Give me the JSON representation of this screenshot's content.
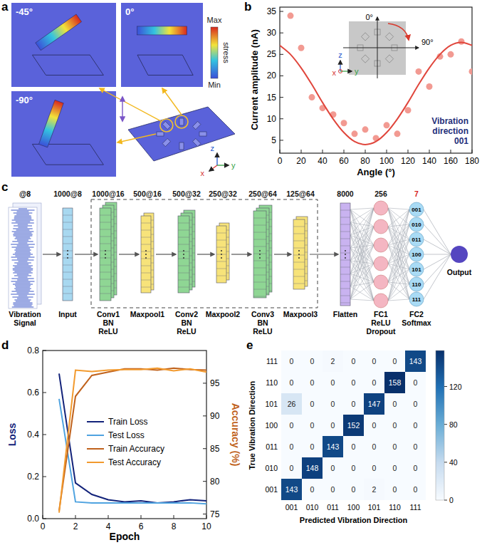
{
  "panel_labels": [
    "a",
    "b",
    "c",
    "d",
    "e"
  ],
  "diagram_a": {
    "angle_labels": [
      "-45°",
      "0°",
      "-90°"
    ],
    "colorbar": {
      "max_label": "Max",
      "title": "stress",
      "min_label": "Min"
    },
    "axes": [
      "x",
      "y",
      "z"
    ]
  },
  "diagram_c": {
    "signal": {
      "size": "@8",
      "label": [
        "Vibration",
        "Signal"
      ]
    },
    "layers": [
      {
        "size": "1000@8",
        "label": [
          "Input"
        ]
      },
      {
        "size": "1000@16",
        "label": [
          "Conv1",
          "BN",
          "ReLU"
        ]
      },
      {
        "size": "500@16",
        "label": [
          "Maxpool1"
        ]
      },
      {
        "size": "500@32",
        "label": [
          "Conv2",
          "BN",
          "ReLU"
        ]
      },
      {
        "size": "250@32",
        "label": [
          "Maxpool2"
        ]
      },
      {
        "size": "250@64",
        "label": [
          "Conv3",
          "BN",
          "ReLU"
        ]
      },
      {
        "size": "125@64",
        "label": [
          "Maxpool3"
        ]
      },
      {
        "size": "8000",
        "label": [
          "Flatten"
        ]
      },
      {
        "size": "256",
        "label": [
          "FC1",
          "ReLU",
          "Dropout"
        ]
      },
      {
        "size": "7",
        "label": [
          "FC2",
          "Softmax"
        ]
      }
    ],
    "classes": [
      "001",
      "010",
      "011",
      "100",
      "101",
      "110",
      "111"
    ],
    "output": "Output"
  },
  "chart_data": [
    {
      "type": "scatter",
      "x_label": "Angle (°)",
      "y_label": "Current amplitude (nA)",
      "xlim": [
        0,
        180
      ],
      "xticks": [
        0,
        20,
        40,
        60,
        80,
        100,
        120,
        140,
        160,
        180
      ],
      "ylim": [
        2,
        36
      ],
      "yticks": [
        5,
        10,
        15,
        20,
        25,
        30,
        35
      ],
      "series": [
        {
          "type": "scatter",
          "marker": "circle",
          "color": "#f29a92",
          "x": [
            10,
            20,
            30,
            40,
            50,
            60,
            70,
            80,
            90,
            100,
            110,
            120,
            130,
            140,
            150,
            160,
            170,
            180
          ],
          "values": [
            34,
            26.5,
            15,
            12.5,
            11,
            9,
            6.5,
            7.5,
            5.5,
            8.5,
            6.5,
            12,
            21,
            17.5,
            24.5,
            25,
            28,
            21
          ]
        },
        {
          "type": "line",
          "line_style": "solid",
          "color": "#e0463c",
          "x": [
            0,
            10,
            20,
            30,
            40,
            50,
            60,
            70,
            80,
            90,
            100,
            110,
            120,
            130,
            140,
            150,
            160,
            170,
            180
          ],
          "values": [
            27.1,
            25.0,
            21.85,
            18.0,
            13.8,
            9.95,
            6.8,
            4.7,
            4.0,
            4.7,
            6.8,
            9.95,
            13.8,
            18.0,
            21.85,
            25.0,
            27.1,
            27.8,
            27.1
          ]
        }
      ],
      "annotation": [
        "Vibration",
        "direction",
        "001"
      ],
      "inset": {
        "angle_labels": [
          "0°",
          "90°"
        ],
        "axes": [
          "z",
          "y",
          "x"
        ]
      }
    },
    {
      "type": "line",
      "x_label": "Epoch",
      "y_label": "Loss",
      "y2_label": "Accuracy (%)",
      "xlim": [
        0,
        10
      ],
      "xticks": [
        0,
        2,
        4,
        6,
        8,
        10
      ],
      "ylim": [
        0,
        0.8
      ],
      "yticks": [
        {
          "value": 0,
          "label": "0.0"
        },
        0.2,
        0.4,
        0.6,
        0.8
      ],
      "y2lim": [
        74.3,
        100
      ],
      "y2ticks": [
        75,
        80,
        85,
        90,
        95
      ],
      "legend": "center",
      "x": [
        1,
        2,
        3,
        4,
        5,
        6,
        7,
        8,
        9,
        10
      ],
      "series": [
        {
          "name": "Train Loss",
          "color": "#13237a",
          "values": [
            0.69,
            0.17,
            0.115,
            0.09,
            0.08,
            0.085,
            0.075,
            0.08,
            0.09,
            0.085
          ]
        },
        {
          "name": "Test Loss",
          "color": "#4fa3e0",
          "values": [
            0.57,
            0.08,
            0.075,
            0.075,
            0.075,
            0.075,
            0.075,
            0.075,
            0.075,
            0.07
          ]
        },
        {
          "name": "Train Accuracy",
          "color": "#c0621c",
          "axis": "y2",
          "values": [
            75.5,
            93,
            96.2,
            96.7,
            97.2,
            97.2,
            97.0,
            97.3,
            97.1,
            97.0
          ]
        },
        {
          "name": "Test Accuracy",
          "color": "#f29a2e",
          "axis": "y2",
          "values": [
            75.2,
            97.0,
            96.8,
            97.0,
            97.1,
            97.1,
            97.3,
            96.9,
            97.2,
            96.7
          ]
        }
      ]
    },
    {
      "type": "heatmap",
      "x_label": "Predicted Vibration Direction",
      "y_label": "True Vibration Direction",
      "categories": [
        "001",
        "010",
        "011",
        "100",
        "101",
        "110",
        "111"
      ],
      "cells": [
        [
          143,
          0,
          0,
          0,
          2,
          0,
          0
        ],
        [
          0,
          148,
          0,
          0,
          0,
          0,
          0
        ],
        [
          0,
          0,
          143,
          0,
          0,
          0,
          0
        ],
        [
          0,
          0,
          0,
          152,
          0,
          0,
          0
        ],
        [
          26,
          0,
          0,
          0,
          147,
          0,
          0
        ],
        [
          0,
          0,
          0,
          0,
          0,
          158,
          0
        ],
        [
          0,
          0,
          2,
          0,
          0,
          0,
          143
        ]
      ],
      "colorbar_range": [
        0,
        158
      ],
      "colorbar_ticks": [
        0,
        40,
        80,
        120
      ],
      "data_labels": true
    }
  ]
}
